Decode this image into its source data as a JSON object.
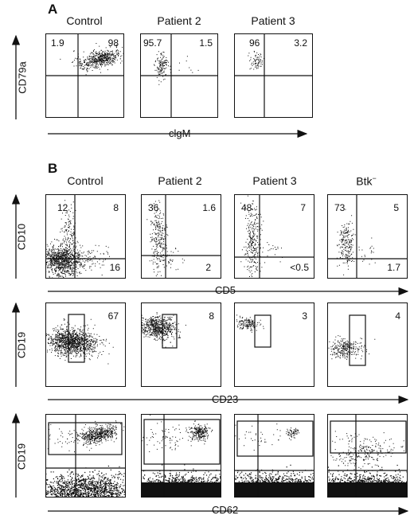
{
  "panelA": {
    "letter": "A",
    "titles": [
      "Control",
      "Patient 2",
      "Patient 3"
    ],
    "ylabel": "CD79a",
    "xlabel": "clgM",
    "quadrants": [
      {
        "left": "1.9",
        "right": "98"
      },
      {
        "left": "95.7",
        "right": "1.5"
      },
      {
        "left": "96",
        "right": "3.2"
      }
    ]
  },
  "panelB": {
    "letter": "B",
    "titles": [
      "Control",
      "Patient 2",
      "Patient 3",
      "Btk"
    ],
    "btk_sup": "−",
    "row1": {
      "ylabel": "CD10",
      "xlabel": "CD5",
      "plots": [
        {
          "ul": "12",
          "ur": "8",
          "lr": "16"
        },
        {
          "ul": "36",
          "ur": "1.6",
          "lr": "2"
        },
        {
          "ul": "48",
          "ur": "7",
          "lr": "<0.5"
        },
        {
          "ul": "73",
          "ur": "5",
          "lr": "1.7"
        }
      ]
    },
    "row2": {
      "ylabel": "CD19",
      "xlabel": "CD23",
      "plots": [
        {
          "gate": "67"
        },
        {
          "gate": "8"
        },
        {
          "gate": "3"
        },
        {
          "gate": "4"
        }
      ]
    },
    "row3": {
      "ylabel": "CD19",
      "xlabel": "CD62"
    }
  }
}
